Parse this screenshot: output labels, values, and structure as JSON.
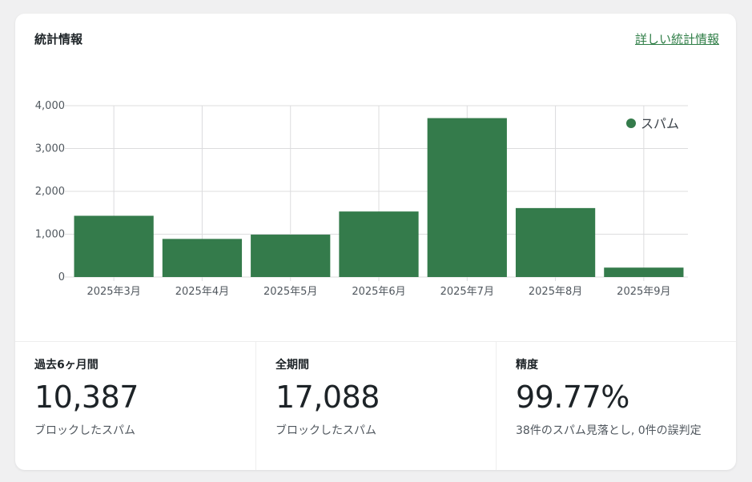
{
  "header": {
    "title": "統計情報",
    "details_link": "詳しい統計情報"
  },
  "colors": {
    "accent": "#347b4b",
    "grid": "#dcdcde",
    "axis_text": "#50575e"
  },
  "chart_data": {
    "type": "bar",
    "categories": [
      "2025年3月",
      "2025年4月",
      "2025年5月",
      "2025年6月",
      "2025年7月",
      "2025年8月",
      "2025年9月"
    ],
    "series": [
      {
        "name": "スパム",
        "values": [
          1430,
          890,
          990,
          1530,
          3710,
          1610,
          220
        ]
      }
    ],
    "yticks": [
      "0",
      "1,000",
      "2,000",
      "3,000",
      "4,000"
    ],
    "ylim": [
      0,
      4000
    ],
    "grid": true,
    "legend_position": "top-right"
  },
  "stats": [
    {
      "label": "過去6ヶ月間",
      "value": "10,387",
      "desc": "ブロックしたスパム"
    },
    {
      "label": "全期間",
      "value": "17,088",
      "desc": "ブロックしたスパム"
    },
    {
      "label": "精度",
      "value": "99.77%",
      "desc": "38件のスパム見落とし, 0件の誤判定"
    }
  ]
}
